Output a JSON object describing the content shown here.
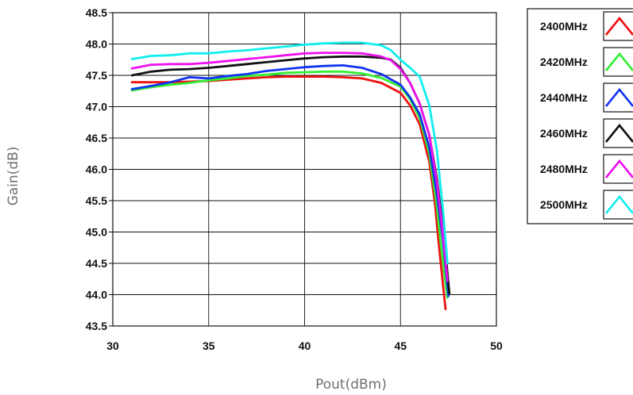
{
  "chart_data": {
    "type": "line",
    "xlabel": "Pout(dBm)",
    "ylabel": "Gain(dB)",
    "xlim": [
      30,
      50
    ],
    "ylim": [
      43.5,
      48.5
    ],
    "xticks": [
      "30",
      "35",
      "40",
      "45",
      "50"
    ],
    "yticks": [
      "43.5",
      "44.0",
      "44.5",
      "45.0",
      "45.5",
      "46.0",
      "46.5",
      "47.0",
      "47.5",
      "48.0",
      "48.5"
    ],
    "grid": true,
    "legend_position": "right",
    "series": [
      {
        "name": "2400MHz",
        "color": "#ee1111",
        "x": [
          31.0,
          32.0,
          33.0,
          34.0,
          35.0,
          36.0,
          37.0,
          38.0,
          39.0,
          40.0,
          41.0,
          42.0,
          43.0,
          44.0,
          45.0,
          45.5,
          46.0,
          46.5,
          46.8,
          47.0,
          47.2,
          47.35
        ],
        "y": [
          47.39,
          47.39,
          47.39,
          47.4,
          47.41,
          47.43,
          47.45,
          47.47,
          47.48,
          47.48,
          47.48,
          47.47,
          47.45,
          47.38,
          47.22,
          47.02,
          46.72,
          46.12,
          45.45,
          44.8,
          44.2,
          43.77
        ]
      },
      {
        "name": "2420MHz",
        "color": "#33ee33",
        "x": [
          31.0,
          32.0,
          33.0,
          34.0,
          35.0,
          36.0,
          37.0,
          38.0,
          39.0,
          40.0,
          41.0,
          42.0,
          43.0,
          44.0,
          45.0,
          45.5,
          46.0,
          46.5,
          46.9,
          47.1,
          47.3,
          47.45
        ],
        "y": [
          47.26,
          47.31,
          47.35,
          47.38,
          47.42,
          47.45,
          47.49,
          47.51,
          47.54,
          47.55,
          47.56,
          47.56,
          47.53,
          47.46,
          47.32,
          47.12,
          46.82,
          46.25,
          45.4,
          44.8,
          44.3,
          43.95
        ]
      },
      {
        "name": "2440MHz",
        "color": "#1133ee",
        "x": [
          31.0,
          32.0,
          33.0,
          34.0,
          35.0,
          36.0,
          37.0,
          38.0,
          39.0,
          40.0,
          41.0,
          42.0,
          43.0,
          44.0,
          45.0,
          45.5,
          46.0,
          46.5,
          46.9,
          47.2,
          47.4,
          47.5
        ],
        "y": [
          47.28,
          47.33,
          47.39,
          47.47,
          47.45,
          47.49,
          47.52,
          47.57,
          47.6,
          47.63,
          47.65,
          47.66,
          47.62,
          47.52,
          47.35,
          47.15,
          46.88,
          46.35,
          45.6,
          44.9,
          44.3,
          43.98
        ]
      },
      {
        "name": "2460MHz",
        "color": "#111111",
        "x": [
          31.0,
          32.0,
          33.0,
          34.0,
          35.0,
          36.0,
          37.0,
          38.0,
          39.0,
          40.0,
          41.0,
          42.0,
          43.0,
          44.0,
          44.5,
          45.0,
          45.5,
          46.0,
          46.5,
          46.9,
          47.2,
          47.4,
          47.55
        ],
        "y": [
          47.5,
          47.56,
          47.59,
          47.6,
          47.62,
          47.65,
          47.68,
          47.71,
          47.74,
          47.77,
          47.79,
          47.8,
          47.8,
          47.78,
          47.75,
          47.62,
          47.38,
          47.05,
          46.55,
          45.85,
          45.1,
          44.5,
          44.02
        ]
      },
      {
        "name": "2480MHz",
        "color": "#ee11ee",
        "x": [
          31.0,
          32.0,
          33.0,
          34.0,
          35.0,
          36.0,
          37.0,
          38.0,
          39.0,
          40.0,
          41.0,
          42.0,
          43.0,
          44.0,
          44.5,
          45.0,
          45.5,
          46.0,
          46.5,
          46.9,
          47.2,
          47.45
        ],
        "y": [
          47.61,
          47.67,
          47.68,
          47.68,
          47.7,
          47.73,
          47.76,
          47.79,
          47.82,
          47.85,
          47.86,
          47.86,
          47.85,
          47.8,
          47.74,
          47.6,
          47.38,
          47.05,
          46.55,
          45.8,
          45.0,
          44.22
        ]
      },
      {
        "name": "2500MHz",
        "color": "#11eeee",
        "x": [
          31.0,
          32.0,
          33.0,
          34.0,
          35.0,
          36.0,
          37.0,
          38.0,
          39.0,
          40.0,
          41.0,
          42.0,
          43.0,
          44.0,
          44.5,
          45.0,
          45.5,
          46.0,
          46.5,
          46.9,
          47.2,
          47.45
        ],
        "y": [
          47.76,
          47.81,
          47.82,
          47.85,
          47.85,
          47.88,
          47.9,
          47.93,
          47.96,
          47.99,
          48.01,
          48.02,
          48.02,
          47.98,
          47.9,
          47.75,
          47.62,
          47.48,
          47.02,
          46.3,
          45.4,
          44.5
        ]
      }
    ]
  }
}
